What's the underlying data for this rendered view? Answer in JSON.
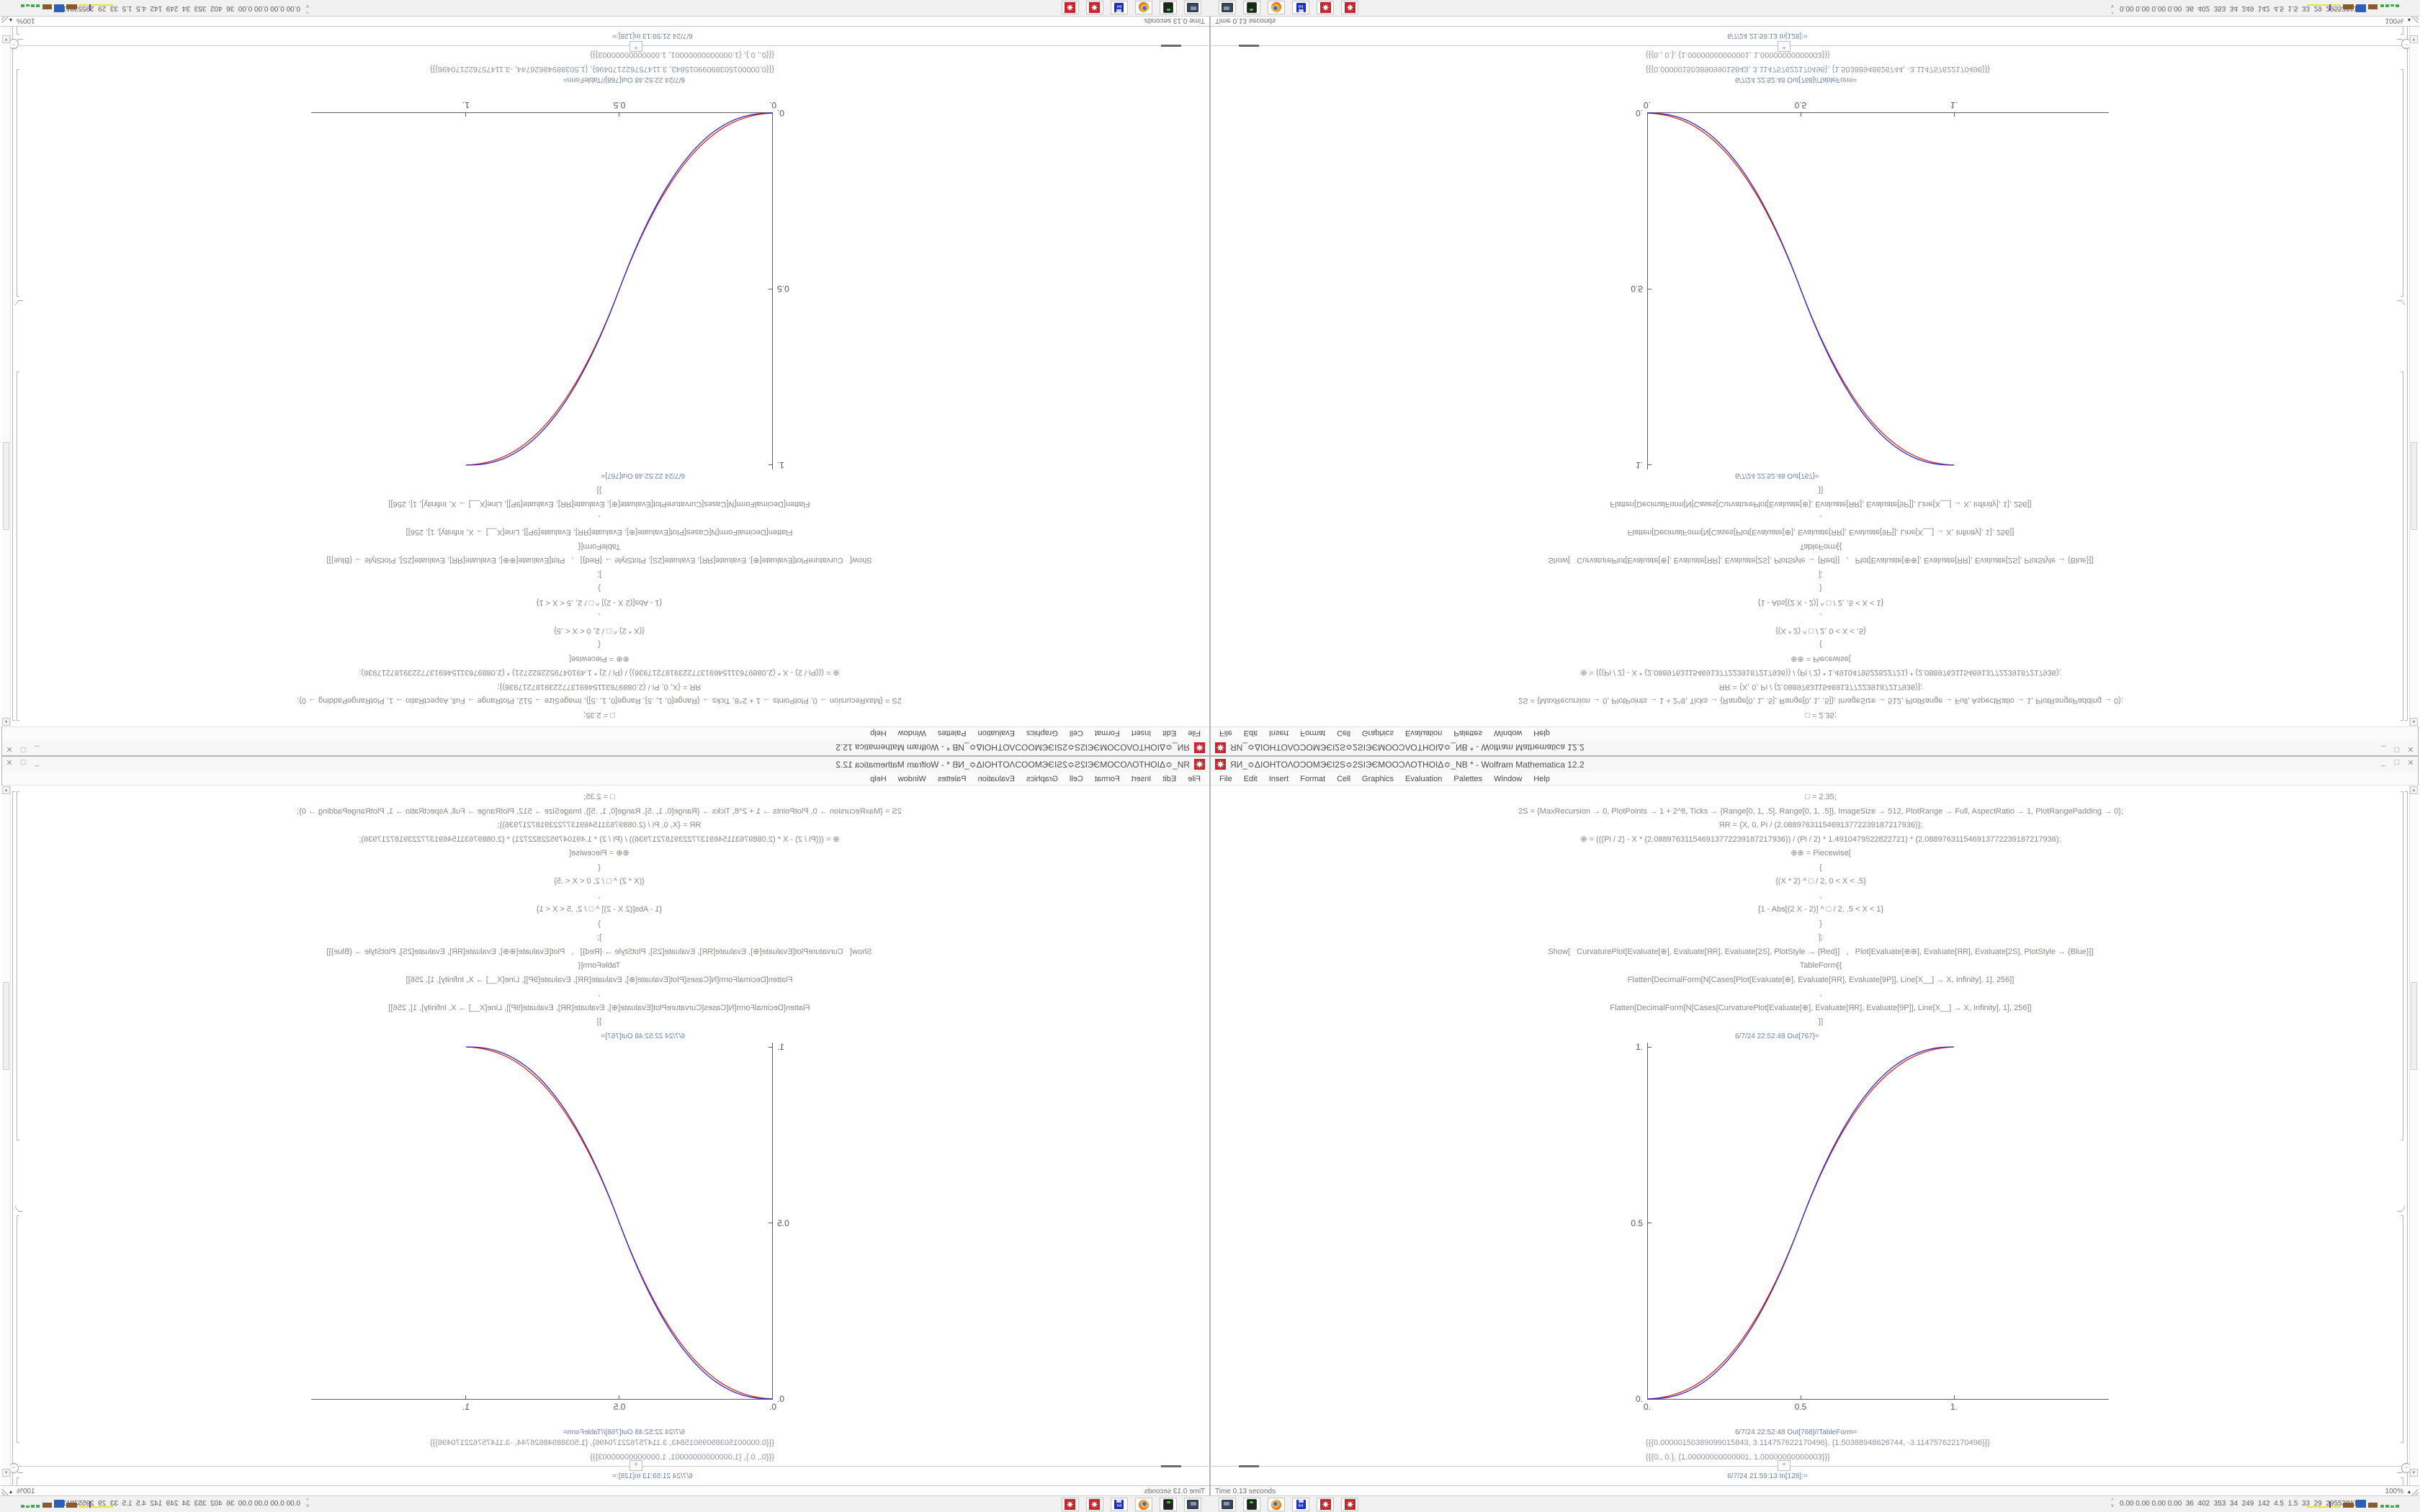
{
  "window": {
    "icon": "mathematica-spikey-icon",
    "title": "ЯИ_≎ΔΙΟΗΤΟΛΟϽΟΜЭЄΙ2S≎2SΙЭЄΜΟΟϽΛΟΤΗΟΙΔ≎_NB * - Wolfram Mathematica 12.2",
    "menu": [
      "File",
      "Edit",
      "Insert",
      "Format",
      "Cell",
      "Graphics",
      "Evaluation",
      "Palettes",
      "Window",
      "Help"
    ],
    "controls": {
      "minimize": "_",
      "maximize": "□",
      "close": "✕"
    }
  },
  "notebook": {
    "code_lines": [
      "□ = 2.35;",
      "2S = {MaxRecursion → 0, PlotPoints → 1 + 2^8, Ticks → {Range[0, 1, .5], Range[0, 1, .5]}, ImageSize → 512, PlotRange → Full, AspectRatio → 1, PlotRangePadding → 0};",
      "ЯR = {X, 0, Pi / (2.088976311546913772239187217936)};",
      "⊕ = (((Pi / 2) - X * (2.088976311546913772239187217936)) / (Pi / 2) * 1.4910479522822721) * (2.088976311546913772239187217936);",
      "⊕⊕ = Piecewise[",
      "{",
      "{(X * 2) ^ □ / 2, 0 < X < .5}",
      ",",
      "{1 - Abs[(2 X - 2)] ^ □ / 2, .5 < X < 1}",
      "}",
      "];",
      "Show[   CurvaturePlot[Evaluate[⊕], Evaluate[ЯR], Evaluate[2S], PlotStyle → {Red}]   ,   Plot[Evaluate[⊕⊕], Evaluate[ЯR], Evaluate[2S], PlotStyle → {Blue}]]",
      "TableForm[{",
      "Flatten[DecimalForm[N[Cases[Plot[Evaluate[⊕], Evaluate[ЯR], Evaluate[9P]], Line[X__] → X, Infinity], 1], 256]]",
      ",",
      "Flatten[DecimalForm[N[Cases[CurvaturePlot[Evaluate[⊕], Evaluate[ЯR], Evaluate[9P]], Line[X__] → X, Infinity], 1], 256]]",
      "}]"
    ],
    "out_plot_label": "6/7/24 22:52:48 Out[767]=",
    "out_table_label": "6/7/24 22:52:48 Out[768]//TableForm=",
    "table_rows": [
      "{{{0.00000150389099015843, 3.114757622170496}, {1.50388948626744, -3.114757622170496}}}",
      "{{{0., 0.}, {1.00000000000001, 1.00000000000003}}}"
    ],
    "insert_button": "+",
    "next_in_label": "6/7/24 21:59:13 In[128]:="
  },
  "chart_data": {
    "type": "line",
    "title": "",
    "xlabel": "",
    "ylabel": "",
    "xlim": [
      0,
      1.504
    ],
    "ylim": [
      0,
      1
    ],
    "xticks": [
      0,
      0.5,
      1
    ],
    "yticks": [
      0,
      0.5,
      1
    ],
    "xtick_labels": [
      "0.",
      "0.5",
      "1."
    ],
    "ytick_labels": [
      "0.",
      "0.5",
      "1."
    ],
    "grid": false,
    "legend": "none",
    "exponent": 2.35,
    "x_samples": [
      0,
      0.1,
      0.2,
      0.3,
      0.4,
      0.5,
      0.6,
      0.7,
      0.8,
      0.9,
      1.0
    ],
    "series": [
      {
        "name": "CurvaturePlot-red",
        "color": "#d8281c",
        "values": [
          0,
          0.019,
          0.066,
          0.159,
          0.304,
          0.5,
          0.696,
          0.841,
          0.934,
          0.981,
          1.0
        ]
      },
      {
        "name": "Piecewise-plot-blue",
        "color": "#3228c8",
        "values": [
          0,
          0.011,
          0.058,
          0.151,
          0.296,
          0.5,
          0.704,
          0.849,
          0.942,
          0.989,
          1.0
        ]
      }
    ]
  },
  "status_bar": {
    "time_text": "Time 0.13 seconds",
    "zoom_level": "100%"
  },
  "taskbar": {
    "icons": [
      {
        "name": "display-settings-icon",
        "type": "monitor"
      },
      {
        "name": "storage-device-icon",
        "type": "device"
      },
      {
        "name": "firefox-icon",
        "type": "firefox"
      },
      {
        "name": "floppy-64-icon",
        "type": "floppy",
        "label": "64"
      },
      {
        "name": "mathematica-spikey-icon",
        "type": "spikey"
      },
      {
        "name": "mathematica-spikey-icon-2",
        "type": "spikey"
      }
    ],
    "tray_chevron": "^",
    "tray_text": "0.00 0.00 0.00 0.00  36  402  353  34  249  142  4.5  1.5  33  29  29553811"
  }
}
